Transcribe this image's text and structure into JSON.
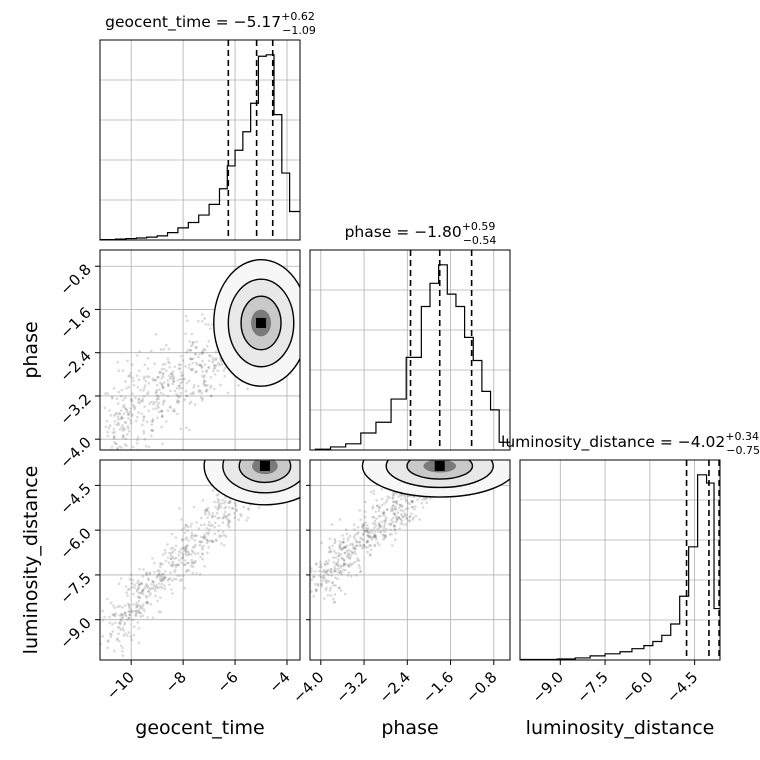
{
  "chart_data": {
    "type": "corner",
    "parameters": [
      "geocent_time",
      "phase",
      "luminosity_distance"
    ],
    "ranges": {
      "geocent_time": [
        -11.2,
        -3.5
      ],
      "phase": [
        -4.2,
        -0.5
      ],
      "luminosity_distance": [
        -10.35,
        -3.65
      ]
    },
    "ticks": {
      "geocent_time": [
        -10,
        -8,
        -6,
        -4
      ],
      "phase": [
        -4.0,
        -3.2,
        -2.4,
        -1.6,
        -0.8
      ],
      "luminosity_distance": [
        -9.0,
        -7.5,
        -6.0,
        -4.5
      ]
    },
    "tick_labels": {
      "geocent_time": [
        "−10",
        "−8",
        "−6",
        "−4"
      ],
      "phase": [
        "−4.0",
        "−3.2",
        "−2.4",
        "−1.6",
        "−0.8"
      ],
      "luminosity_distance": [
        "−9.0",
        "−7.5",
        "−6.0",
        "−4.5"
      ]
    },
    "axis_labels": {
      "geocent_time": "geocent_time",
      "phase": "phase",
      "luminosity_distance": "luminosity_distance"
    },
    "titles": [
      {
        "param": "geocent_time",
        "main": "geocent_time = −5.17",
        "plus": "+0.62",
        "minus": "−1.09"
      },
      {
        "param": "phase",
        "main": "phase = −1.80",
        "plus": "+0.59",
        "minus": "−0.54"
      },
      {
        "param": "luminosity_distance",
        "main": "luminosity_distance = −4.02",
        "plus": "+0.34",
        "minus": "−0.75"
      }
    ],
    "histograms": {
      "geocent_time": {
        "edges": [
          -11.2,
          -10.6,
          -10.2,
          -9.8,
          -9.4,
          -9.0,
          -8.6,
          -8.2,
          -7.8,
          -7.4,
          -7.0,
          -6.6,
          -6.3,
          -6.0,
          -5.7,
          -5.4,
          -5.1,
          -4.8,
          -4.5,
          -4.2,
          -3.9,
          -3.5
        ],
        "counts": [
          0.3,
          0.6,
          1.0,
          1.4,
          2.0,
          2.9,
          5.2,
          8.5,
          12.3,
          17.5,
          25.0,
          36.0,
          52.0,
          63.0,
          76.0,
          96.0,
          129.0,
          130.0,
          88.0,
          47.0,
          20.0
        ],
        "quantiles": [
          -6.26,
          -5.17,
          -4.55
        ]
      },
      "phase": {
        "edges": [
          -4.1,
          -3.82,
          -3.54,
          -3.26,
          -2.98,
          -2.7,
          -2.42,
          -2.14,
          -1.98,
          -1.82,
          -1.66,
          -1.5,
          -1.34,
          -1.18,
          -1.02,
          -0.86,
          -0.7,
          -0.5
        ],
        "counts": [
          0.5,
          2.0,
          4.0,
          11.0,
          18.0,
          33.0,
          60.0,
          93.0,
          108.0,
          120.0,
          101.0,
          93.0,
          73.0,
          58.0,
          38.0,
          26.0,
          5.0
        ],
        "quantiles": [
          -2.34,
          -1.8,
          -1.21
        ]
      },
      "luminosity_distance": {
        "edges": [
          -10.35,
          -9.1,
          -8.5,
          -8.0,
          -7.5,
          -7.0,
          -6.6,
          -6.2,
          -5.9,
          -5.6,
          -5.3,
          -5.0,
          -4.7,
          -4.4,
          -4.1,
          -3.85,
          -3.65
        ],
        "counts": [
          0.5,
          1.0,
          2.0,
          4.0,
          6.0,
          8.0,
          11.0,
          14.0,
          18.0,
          24.0,
          35.0,
          62.0,
          110.0,
          180.0,
          172.0,
          50.0
        ],
        "quantiles": [
          -4.77,
          -4.02,
          -3.68
        ]
      }
    },
    "panels_2d": [
      {
        "x": "geocent_time",
        "y": "phase",
        "peak": [
          -5.0,
          -1.85
        ],
        "spread": [
          0.7,
          0.45
        ]
      },
      {
        "x": "geocent_time",
        "y": "luminosity_distance",
        "peak": [
          -4.85,
          -3.85
        ],
        "spread": [
          0.9,
          0.5
        ]
      },
      {
        "x": "phase",
        "y": "luminosity_distance",
        "peak": [
          -1.8,
          -3.85
        ],
        "spread": [
          0.55,
          0.4
        ]
      }
    ],
    "grid": true,
    "colors": {
      "line": "#000000",
      "grid": "#b0b0b0",
      "samples": "#555555",
      "quantile": "#000000"
    }
  }
}
